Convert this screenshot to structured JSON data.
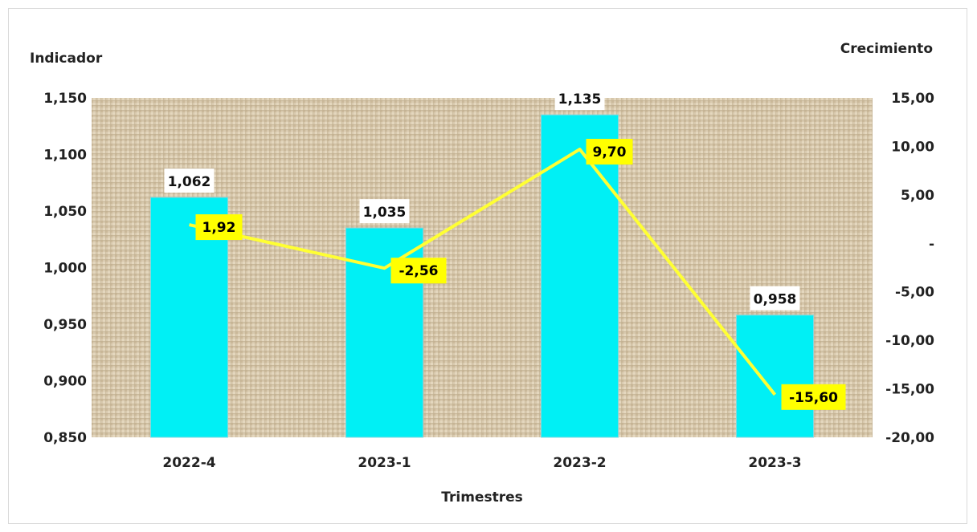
{
  "chart_data": {
    "type": "bar",
    "categories": [
      "2022-4",
      "2023-1",
      "2023-2",
      "2023-3"
    ],
    "xlabel": "Trimestres",
    "series": [
      {
        "name": "Indicador",
        "type": "bar",
        "axis": "left",
        "values": [
          1.062,
          1.035,
          1.135,
          0.958
        ],
        "labels": [
          "1,062",
          "1,035",
          "1,135",
          "0,958"
        ]
      },
      {
        "name": "Crecimiento",
        "type": "line",
        "axis": "right",
        "values": [
          1.92,
          -2.56,
          9.7,
          -15.6
        ],
        "labels": [
          "1,92",
          "-2,56",
          "9,70",
          "-15,60"
        ]
      }
    ],
    "y_left": {
      "title": "Indicador",
      "ylim": [
        0.85,
        1.15
      ],
      "ticks": [
        1.15,
        1.1,
        1.05,
        1.0,
        0.95,
        0.9,
        0.85
      ],
      "tick_labels": [
        "1,150",
        "1,100",
        "1,050",
        "1,000",
        "0,950",
        "0,900",
        "0,850"
      ]
    },
    "y_right": {
      "title": "Crecimiento",
      "ylim": [
        -20,
        15
      ],
      "ticks": [
        15,
        10,
        5,
        0,
        -5,
        -10,
        -15,
        -20
      ],
      "tick_labels": [
        "15,00",
        "10,00",
        "5,00",
        "-",
        "-5,00",
        "-10,00",
        "-15,00",
        "-20,00"
      ]
    },
    "grid": false,
    "legend": "none",
    "colors": {
      "bar": "#00f0f5",
      "line": "#ffff33",
      "label_box": "#ffff00",
      "plot_background": "#d7c8ad"
    }
  }
}
